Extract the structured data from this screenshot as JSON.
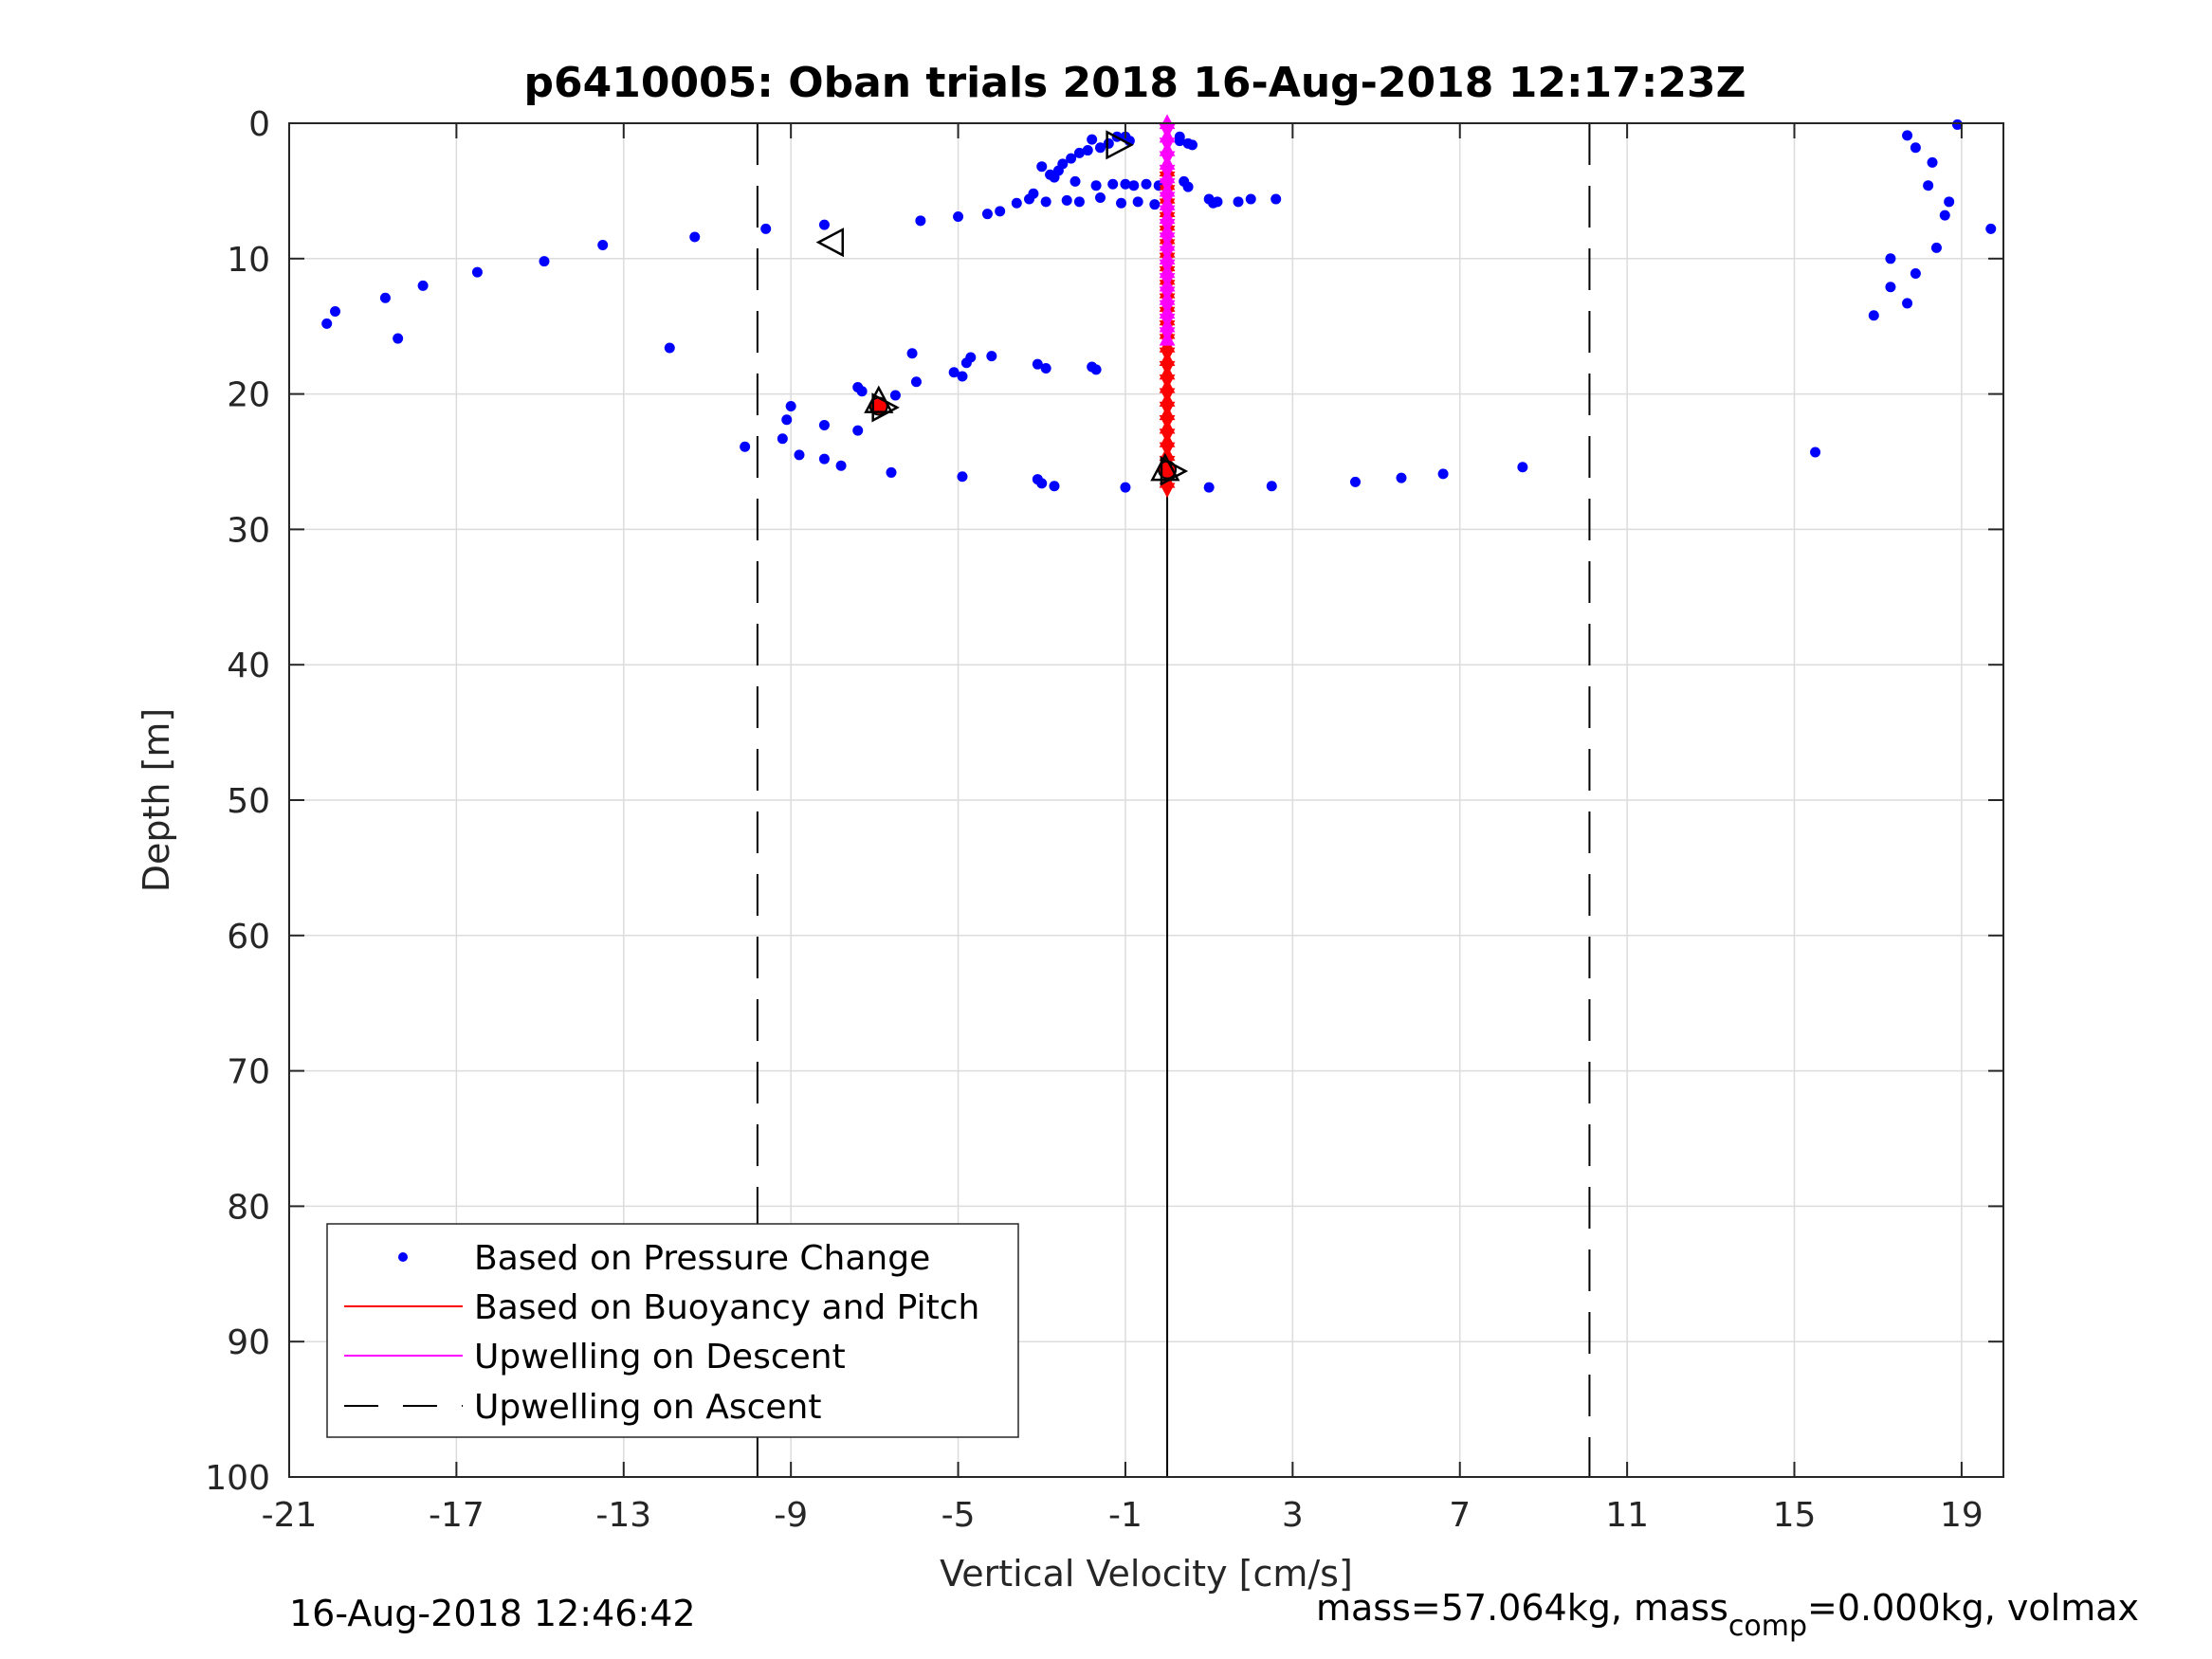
{
  "chart_data": {
    "type": "scatter",
    "title": "p6410005: Oban trials 2018 16-Aug-2018 12:17:23Z",
    "xlabel": "Vertical Velocity [cm/s]",
    "ylabel": "Depth [m]",
    "xlim": [
      -21,
      20
    ],
    "ylim": [
      0,
      100
    ],
    "y_reversed": true,
    "grid": true,
    "x_ticks": [
      "-21",
      "-17",
      "-13",
      "-9",
      "-5",
      "-1",
      "3",
      "7",
      "11",
      "15",
      "19"
    ],
    "y_ticks": [
      "0",
      "10",
      "20",
      "30",
      "40",
      "50",
      "60",
      "70",
      "80",
      "90",
      "100"
    ],
    "legend_position": "bottom-left",
    "legend": [
      {
        "label": "Based on Pressure Change",
        "style": "dot",
        "color": "#0000ff"
      },
      {
        "label": "Based on Buoyancy and Pitch",
        "style": "line",
        "color": "#ff0000"
      },
      {
        "label": "Upwelling on Descent",
        "style": "line",
        "color": "#ff00ff"
      },
      {
        "label": "Upwelling on Ascent",
        "style": "dash",
        "color": "#000000"
      }
    ],
    "reference_lines": {
      "ascent_dashed_x": [
        -9.8,
        10.1
      ],
      "zero_line_x": 0,
      "zero_line_depth_range": [
        0,
        100
      ]
    },
    "series": [
      {
        "name": "Based on Pressure Change",
        "type": "scatter",
        "color": "#0000ff",
        "points": [
          [
            -1.8,
            1.2
          ],
          [
            -1.2,
            1.0
          ],
          [
            -1.0,
            1.0
          ],
          [
            -0.9,
            1.3
          ],
          [
            -1.4,
            1.5
          ],
          [
            -1.6,
            1.8
          ],
          [
            -1.9,
            2.0
          ],
          [
            -2.1,
            2.2
          ],
          [
            -2.3,
            2.6
          ],
          [
            -2.5,
            3.0
          ],
          [
            -2.6,
            3.5
          ],
          [
            -2.8,
            3.8
          ],
          [
            -3.0,
            3.2
          ],
          [
            -2.7,
            4.0
          ],
          [
            -2.2,
            4.3
          ],
          [
            -1.7,
            4.6
          ],
          [
            -1.3,
            4.5
          ],
          [
            -1.0,
            4.5
          ],
          [
            -0.8,
            4.6
          ],
          [
            -0.5,
            4.5
          ],
          [
            -0.2,
            4.6
          ],
          [
            0.0,
            4.6
          ],
          [
            0.4,
            4.3
          ],
          [
            0.5,
            4.7
          ],
          [
            -3.2,
            5.2
          ],
          [
            -3.3,
            5.6
          ],
          [
            -2.9,
            5.8
          ],
          [
            -2.4,
            5.7
          ],
          [
            -2.1,
            5.8
          ],
          [
            -1.6,
            5.5
          ],
          [
            -1.1,
            5.9
          ],
          [
            -0.7,
            5.8
          ],
          [
            -0.3,
            6.0
          ],
          [
            1.0,
            5.6
          ],
          [
            1.1,
            5.9
          ],
          [
            1.2,
            5.8
          ],
          [
            1.7,
            5.8
          ],
          [
            2.0,
            5.6
          ],
          [
            2.6,
            5.6
          ],
          [
            -3.6,
            5.9
          ],
          [
            -4.0,
            6.5
          ],
          [
            -4.3,
            6.7
          ],
          [
            0.3,
            1.0
          ],
          [
            0.5,
            1.5
          ],
          [
            0.6,
            1.6
          ],
          [
            0.3,
            1.3
          ],
          [
            -5.0,
            6.9
          ],
          [
            -5.9,
            7.2
          ],
          [
            -8.2,
            7.5
          ],
          [
            -9.6,
            7.8
          ],
          [
            -11.3,
            8.4
          ],
          [
            -13.5,
            9.0
          ],
          [
            -14.9,
            10.2
          ],
          [
            -16.5,
            11.0
          ],
          [
            -17.8,
            12.0
          ],
          [
            -18.7,
            12.9
          ],
          [
            -19.9,
            13.9
          ],
          [
            -20.1,
            14.8
          ],
          [
            -18.4,
            15.9
          ],
          [
            -11.9,
            16.6
          ],
          [
            -6.1,
            17.0
          ],
          [
            -4.2,
            17.2
          ],
          [
            -4.7,
            17.3
          ],
          [
            -4.8,
            17.7
          ],
          [
            -4.9,
            18.7
          ],
          [
            -5.1,
            18.4
          ],
          [
            -3.1,
            17.8
          ],
          [
            -2.9,
            18.1
          ],
          [
            -1.8,
            18.0
          ],
          [
            -1.7,
            18.2
          ],
          [
            -6.0,
            19.1
          ],
          [
            -6.5,
            20.1
          ],
          [
            -7.4,
            19.5
          ],
          [
            -7.3,
            19.8
          ],
          [
            -9.0,
            20.9
          ],
          [
            -9.1,
            21.9
          ],
          [
            -8.2,
            22.3
          ],
          [
            -7.4,
            22.7
          ],
          [
            -9.2,
            23.3
          ],
          [
            -10.1,
            23.9
          ],
          [
            -8.8,
            24.5
          ],
          [
            -8.2,
            24.8
          ],
          [
            -7.8,
            25.3
          ],
          [
            -6.6,
            25.8
          ],
          [
            -4.9,
            26.1
          ],
          [
            -3.1,
            26.3
          ],
          [
            -3.0,
            26.6
          ],
          [
            -2.7,
            26.8
          ],
          [
            -1.0,
            26.9
          ],
          [
            1.0,
            26.9
          ],
          [
            2.5,
            26.8
          ],
          [
            4.5,
            26.5
          ],
          [
            5.6,
            26.2
          ],
          [
            6.6,
            25.9
          ],
          [
            8.5,
            25.4
          ],
          [
            15.5,
            24.3
          ],
          [
            16.9,
            14.2
          ],
          [
            17.3,
            10.0
          ],
          [
            17.3,
            12.1
          ],
          [
            17.7,
            13.3
          ],
          [
            17.9,
            11.1
          ],
          [
            18.4,
            9.2
          ],
          [
            18.6,
            6.8
          ],
          [
            18.7,
            5.8
          ],
          [
            18.2,
            4.6
          ],
          [
            18.3,
            2.9
          ],
          [
            17.9,
            1.8
          ],
          [
            17.7,
            0.9
          ],
          [
            18.9,
            0.1
          ],
          [
            19.7,
            7.8
          ]
        ]
      },
      {
        "name": "Based on Buoyancy and Pitch",
        "type": "markers",
        "color": "#ff0000",
        "x": 0.0,
        "depth_range": [
          3.5,
          27.0
        ]
      },
      {
        "name": "Upwelling on Descent",
        "type": "markers",
        "color": "#ff00ff",
        "x": 0.0,
        "depth_range": [
          0.0,
          16.0
        ]
      }
    ],
    "triangle_markers": [
      {
        "direction": "right",
        "x": -1.2,
        "y": 1.6,
        "filled": false
      },
      {
        "direction": "left",
        "x": -8.0,
        "y": 8.8,
        "filled": false
      },
      {
        "direction": "up",
        "x": -6.9,
        "y": 20.6,
        "filled": false
      },
      {
        "direction": "right",
        "x": -6.8,
        "y": 21.0,
        "filled": false
      },
      {
        "direction": "up",
        "x": -0.05,
        "y": 25.6,
        "filled": false
      },
      {
        "direction": "right",
        "x": 0.1,
        "y": 25.7,
        "filled": false
      }
    ],
    "red_filled_points": [
      {
        "x": -6.9,
        "y": 20.9
      },
      {
        "x": 0.0,
        "y": 25.6
      }
    ]
  },
  "footer": {
    "timestamp": "16-Aug-2018 12:46:42",
    "mass_prefix": "mass=57.064kg, mass",
    "mass_sub": "comp",
    "mass_suffix": "=0.000kg, volmax"
  }
}
